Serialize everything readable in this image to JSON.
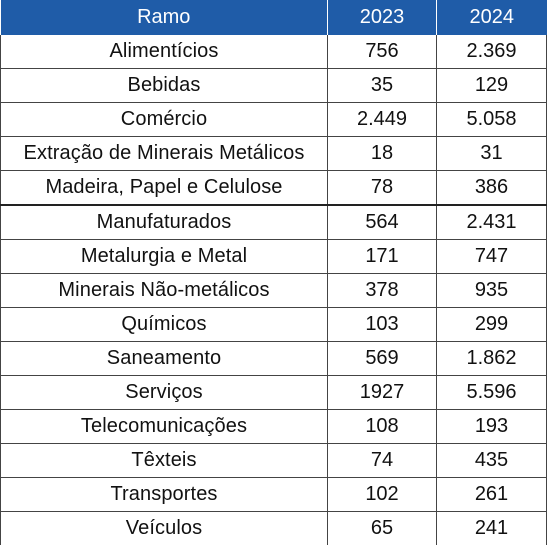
{
  "header": {
    "ramo": "Ramo",
    "year1": "2023",
    "year2": "2024"
  },
  "colors": {
    "header_bg": "#1f5ca8",
    "header_text": "#ffffff",
    "grid": "#444444"
  },
  "rows": [
    {
      "ramo": "Alimentícios",
      "y2023": "756",
      "y2024": "2.369"
    },
    {
      "ramo": "Bebidas",
      "y2023": "35",
      "y2024": "129"
    },
    {
      "ramo": "Comércio",
      "y2023": "2.449",
      "y2024": "5.058"
    },
    {
      "ramo": "Extração de Minerais Metálicos",
      "y2023": "18",
      "y2024": "31"
    },
    {
      "ramo": "Madeira, Papel e Celulose",
      "y2023": "78",
      "y2024": "386"
    },
    {
      "ramo": "Manufaturados",
      "y2023": "564",
      "y2024": "2.431"
    },
    {
      "ramo": "Metalurgia e Metal",
      "y2023": "171",
      "y2024": "747"
    },
    {
      "ramo": "Minerais Não-metálicos",
      "y2023": "378",
      "y2024": "935"
    },
    {
      "ramo": "Químicos",
      "y2023": "103",
      "y2024": "299"
    },
    {
      "ramo": "Saneamento",
      "y2023": "569",
      "y2024": "1.862"
    },
    {
      "ramo": "Serviços",
      "y2023": "1927",
      "y2024": "5.596"
    },
    {
      "ramo": "Telecomunicações",
      "y2023": "108",
      "y2024": "193"
    },
    {
      "ramo": "Têxteis",
      "y2023": "74",
      "y2024": "435"
    },
    {
      "ramo": "Transportes",
      "y2023": "102",
      "y2024": "261"
    },
    {
      "ramo": "Veículos",
      "y2023": "65",
      "y2024": "241"
    }
  ]
}
